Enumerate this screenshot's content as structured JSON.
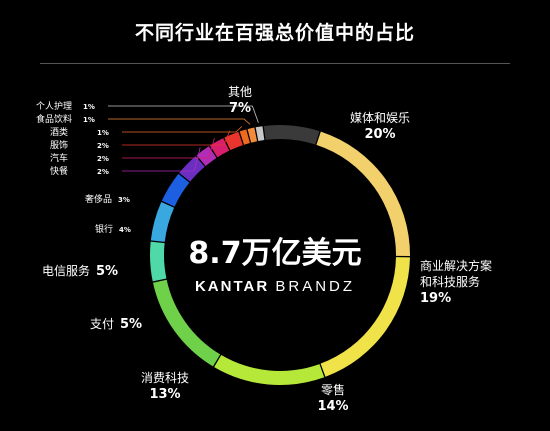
{
  "chart_data": {
    "type": "pie",
    "title": "不同行业在百强总价值中的占比",
    "center_value": "8.7万亿美元",
    "brand_bold": "KANTAR",
    "brand_light": "BRANDZ",
    "slices": [
      {
        "name": "媒体和娱乐",
        "label": "20%",
        "value": 20,
        "color": "#f2d06b"
      },
      {
        "name": "商业解决方案\n和科技服务",
        "label": "19%",
        "value": 19,
        "color": "#f0e34a"
      },
      {
        "name": "零售",
        "label": "14%",
        "value": 14,
        "color": "#b5e839"
      },
      {
        "name": "消费科技",
        "label": "13%",
        "value": 13,
        "color": "#6fd14a"
      },
      {
        "name": "支付",
        "label": "5%",
        "value": 5,
        "color": "#4fd8a8"
      },
      {
        "name": "电信服务",
        "label": "5%",
        "value": 5,
        "color": "#3aa8e0"
      },
      {
        "name": "银行",
        "label": "4%",
        "value": 4,
        "color": "#1c5fe0"
      },
      {
        "name": "奢侈品",
        "label": "3%",
        "value": 3,
        "color": "#6a2ec2"
      },
      {
        "name": "快餐",
        "label": "2%",
        "value": 2,
        "color": "#b02db8"
      },
      {
        "name": "汽车",
        "label": "2%",
        "value": 2,
        "color": "#d81f6e"
      },
      {
        "name": "服饰",
        "label": "2%",
        "value": 2,
        "color": "#e8362e"
      },
      {
        "name": "酒类",
        "label": "1%",
        "value": 1,
        "color": "#ef6a1f"
      },
      {
        "name": "食品饮料",
        "label": "1%",
        "value": 1,
        "color": "#f28c3a"
      },
      {
        "name": "个人护理",
        "label": "1%",
        "value": 1,
        "color": "#c8c8c8"
      },
      {
        "name": "其他",
        "label": "7%",
        "value": 7,
        "color": "#3a3a3a"
      }
    ]
  }
}
